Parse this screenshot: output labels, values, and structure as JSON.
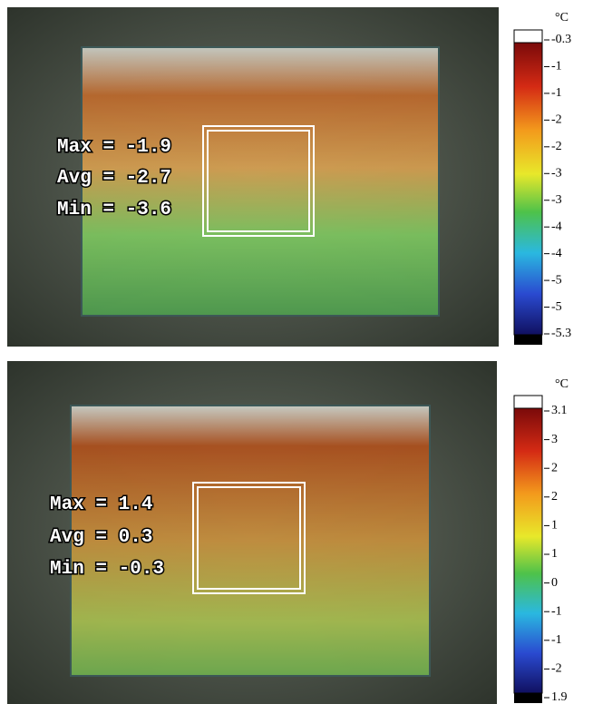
{
  "panels": [
    {
      "stats": [
        "Max = -1.9",
        "Avg = -2.7",
        "Min = -3.6"
      ],
      "unit": "°C",
      "scale": [
        "-0.3",
        "-1",
        "-1",
        "-2",
        "-2",
        "-3",
        "-3",
        "-4",
        "-4",
        "-5",
        "-5",
        "-5.3"
      ]
    },
    {
      "stats": [
        "Max = 1.4",
        "Avg = 0.3",
        "Min = -0.3"
      ],
      "unit": "°C",
      "scale": [
        "3.1",
        "3",
        "2",
        "2",
        "1",
        "1",
        "0",
        "-1",
        "-1",
        "-2",
        "1.9"
      ]
    }
  ]
}
